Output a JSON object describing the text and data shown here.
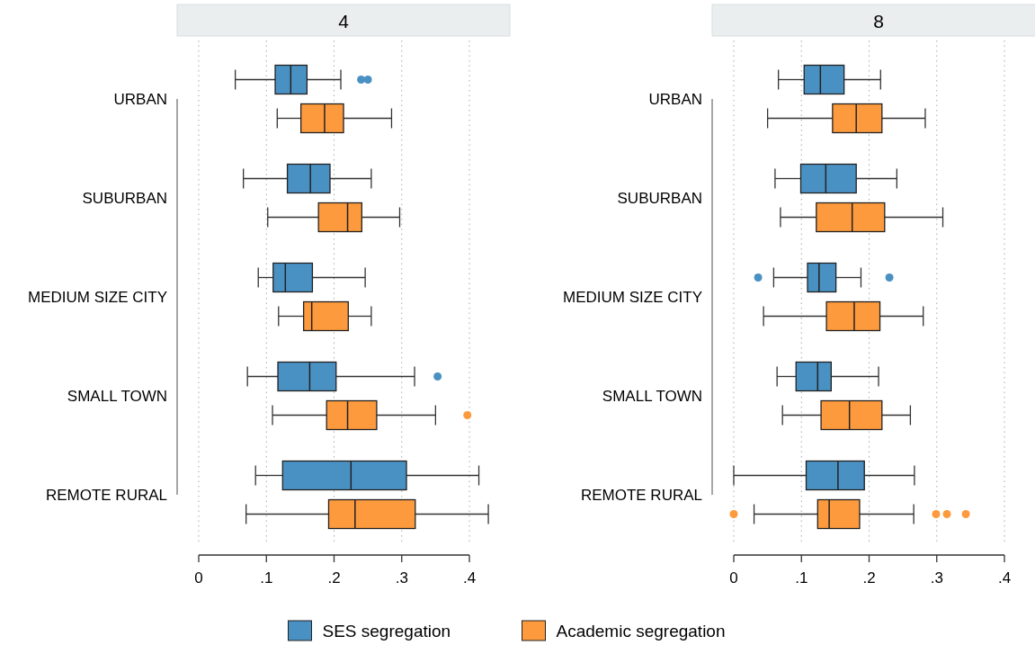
{
  "chart_data": [
    {
      "type": "box",
      "title": "4",
      "orientation": "horizontal",
      "categories": [
        "URBAN",
        "SUBURBAN",
        "MEDIUM SIZE CITY",
        "SMALL TOWN",
        "REMOTE RURAL"
      ],
      "xlim": [
        0,
        0.4
      ],
      "xticks": [
        0,
        {
          "value": 0.1,
          "label": ".1"
        },
        {
          "value": 0.2,
          "label": ".2"
        },
        {
          "value": 0.3,
          "label": ".3"
        },
        {
          "value": 0.4,
          "label": ".4"
        }
      ],
      "grid": "x",
      "legend": "bottom",
      "series": [
        {
          "name": "SES segregation",
          "color": "#4a91c3",
          "boxes": [
            {
              "low": 0.054,
              "q1": 0.113,
              "median": 0.136,
              "q3": 0.16,
              "high": 0.21,
              "outliers": [
                0.24,
                0.25
              ]
            },
            {
              "low": 0.066,
              "q1": 0.131,
              "median": 0.165,
              "q3": 0.194,
              "high": 0.255
            },
            {
              "low": 0.088,
              "q1": 0.11,
              "median": 0.128,
              "q3": 0.168,
              "high": 0.246
            },
            {
              "low": 0.072,
              "q1": 0.117,
              "median": 0.164,
              "q3": 0.203,
              "high": 0.319,
              "outliers": [
                0.353
              ]
            },
            {
              "low": 0.084,
              "q1": 0.124,
              "median": 0.225,
              "q3": 0.307,
              "high": 0.414
            }
          ]
        },
        {
          "name": "Academic segregation",
          "color": "#fd9a3d",
          "boxes": [
            {
              "low": 0.116,
              "q1": 0.151,
              "median": 0.186,
              "q3": 0.214,
              "high": 0.285
            },
            {
              "low": 0.102,
              "q1": 0.177,
              "median": 0.22,
              "q3": 0.241,
              "high": 0.297
            },
            {
              "low": 0.118,
              "q1": 0.155,
              "median": 0.167,
              "q3": 0.221,
              "high": 0.255
            },
            {
              "low": 0.109,
              "q1": 0.189,
              "median": 0.22,
              "q3": 0.263,
              "high": 0.35,
              "outliers": [
                0.397
              ]
            },
            {
              "low": 0.07,
              "q1": 0.192,
              "median": 0.231,
              "q3": 0.32,
              "high": 0.428
            }
          ]
        }
      ]
    },
    {
      "type": "box",
      "title": "8",
      "orientation": "horizontal",
      "categories": [
        "URBAN",
        "SUBURBAN",
        "MEDIUM SIZE CITY",
        "SMALL TOWN",
        "REMOTE RURAL"
      ],
      "xlim": [
        0,
        0.4
      ],
      "xticks": [
        0,
        {
          "value": 0.1,
          "label": ".1"
        },
        {
          "value": 0.2,
          "label": ".2"
        },
        {
          "value": 0.3,
          "label": ".3"
        },
        {
          "value": 0.4,
          "label": ".4"
        }
      ],
      "grid": "x",
      "series": [
        {
          "color": "#4a91c3",
          "boxes": [
            {
              "low": 0.066,
              "q1": 0.104,
              "median": 0.128,
              "q3": 0.163,
              "high": 0.217
            },
            {
              "low": 0.061,
              "q1": 0.099,
              "median": 0.136,
              "q3": 0.181,
              "high": 0.241
            },
            {
              "low": 0.059,
              "q1": 0.109,
              "median": 0.126,
              "q3": 0.151,
              "high": 0.188,
              "outliers": [
                0.036,
                0.23
              ]
            },
            {
              "low": 0.064,
              "q1": 0.092,
              "median": 0.124,
              "q3": 0.144,
              "high": 0.214
            },
            {
              "low": 0,
              "q1": 0.107,
              "median": 0.154,
              "q3": 0.193,
              "high": 0.267
            }
          ]
        },
        {
          "color": "#fd9a3d",
          "boxes": [
            {
              "low": 0.05,
              "q1": 0.146,
              "median": 0.181,
              "q3": 0.219,
              "high": 0.283
            },
            {
              "low": 0.069,
              "q1": 0.122,
              "median": 0.175,
              "q3": 0.223,
              "high": 0.309
            },
            {
              "low": 0.044,
              "q1": 0.137,
              "median": 0.178,
              "q3": 0.216,
              "high": 0.28
            },
            {
              "low": 0.072,
              "q1": 0.129,
              "median": 0.171,
              "q3": 0.219,
              "high": 0.261
            },
            {
              "low": 0.03,
              "q1": 0.124,
              "median": 0.141,
              "q3": 0.186,
              "high": 0.266,
              "outliers": [
                0,
                0.299,
                0.315,
                0.343
              ]
            }
          ]
        }
      ]
    }
  ]
}
